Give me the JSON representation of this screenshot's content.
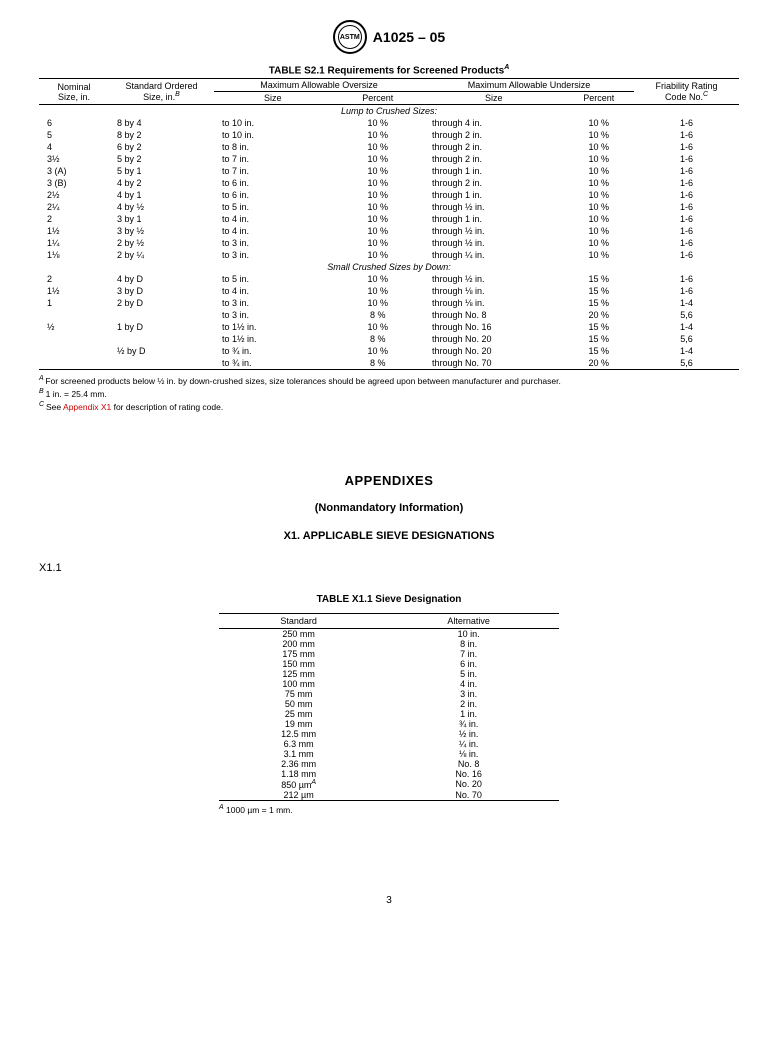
{
  "header": {
    "logo_text": "ASTM",
    "doc_number": "A1025 – 05"
  },
  "table_s21": {
    "title": "TABLE S2.1  Requirements for Screened Products",
    "title_sup": "A",
    "head": {
      "nominal": "Nominal\nSize, in.",
      "standard_ordered": "Standard Ordered\nSize, in.",
      "standard_ordered_sup": "B",
      "max_oversize": "Maximum Allowable Oversize",
      "max_undersize": "Maximum Allowable Undersize",
      "size": "Size",
      "percent": "Percent",
      "friability": "Friability Rating\nCode No.",
      "friability_sup": "C"
    },
    "section1_title": "Lump to Crushed Sizes:",
    "section1_rows": [
      {
        "n": "6",
        "so": "8 by 4",
        "os": "to 10 in.",
        "op": "10 %",
        "us": "through 4 in.",
        "up": "10 %",
        "f": "1-6"
      },
      {
        "n": "5",
        "so": "8 by 2",
        "os": "to 10 in.",
        "op": "10 %",
        "us": "through 2 in.",
        "up": "10 %",
        "f": "1-6"
      },
      {
        "n": "4",
        "so": "6 by 2",
        "os": "to 8 in.",
        "op": "10 %",
        "us": "through 2 in.",
        "up": "10 %",
        "f": "1-6"
      },
      {
        "n": "3½",
        "so": "5 by 2",
        "os": "to 7 in.",
        "op": "10 %",
        "us": "through 2 in.",
        "up": "10 %",
        "f": "1-6"
      },
      {
        "n": "3 (A)",
        "so": "5 by 1",
        "os": "to 7 in.",
        "op": "10 %",
        "us": "through 1 in.",
        "up": "10 %",
        "f": "1-6"
      },
      {
        "n": "3 (B)",
        "so": "4 by 2",
        "os": "to 6 in.",
        "op": "10 %",
        "us": "through 2 in.",
        "up": "10 %",
        "f": "1-6"
      },
      {
        "n": "2½",
        "so": "4 by 1",
        "os": "to 6 in.",
        "op": "10 %",
        "us": "through 1 in.",
        "up": "10 %",
        "f": "1-6"
      },
      {
        "n": "2¼",
        "so": "4 by ½",
        "os": "to 5 in.",
        "op": "10 %",
        "us": "through ½ in.",
        "up": "10 %",
        "f": "1-6"
      },
      {
        "n": "2",
        "so": "3 by 1",
        "os": "to 4 in.",
        "op": "10 %",
        "us": "through 1 in.",
        "up": "10 %",
        "f": "1-6"
      },
      {
        "n": "1½",
        "so": "3 by ½",
        "os": "to 4 in.",
        "op": "10 %",
        "us": "through ½ in.",
        "up": "10 %",
        "f": "1-6"
      },
      {
        "n": "1¼",
        "so": "2 by ½",
        "os": "to 3 in.",
        "op": "10 %",
        "us": "through ½ in.",
        "up": "10 %",
        "f": "1-6"
      },
      {
        "n": "1⅛",
        "so": "2 by ¼",
        "os": "to 3 in.",
        "op": "10 %",
        "us": "through ¼ in.",
        "up": "10 %",
        "f": "1-6"
      }
    ],
    "section2_title": "Small Crushed Sizes by Down:",
    "section2_rows": [
      {
        "n": "2",
        "so": "4 by D",
        "os": "to 5 in.",
        "op": "10 %",
        "us": "through ½ in.",
        "up": "15 %",
        "f": "1-6"
      },
      {
        "n": "1½",
        "so": "3 by D",
        "os": "to 4 in.",
        "op": "10 %",
        "us": "through ⅛ in.",
        "up": "15 %",
        "f": "1-6"
      },
      {
        "n": "1",
        "so": "2 by D",
        "os": "to 3 in.",
        "op": "10 %",
        "us": "through ⅛ in.",
        "up": "15 %",
        "f": "1-4"
      },
      {
        "n": "",
        "so": "",
        "os": "to 3 in.",
        "op": "8 %",
        "us": "through No. 8",
        "up": "20 %",
        "f": "5,6"
      },
      {
        "n": "½",
        "so": "1 by D",
        "os": "to 1½ in.",
        "op": "10 %",
        "us": "through No. 16",
        "up": "15 %",
        "f": "1-4"
      },
      {
        "n": "",
        "so": "",
        "os": "to 1½ in.",
        "op": "8 %",
        "us": "through No. 20",
        "up": "15 %",
        "f": "5,6"
      },
      {
        "n": "",
        "so": "½ by D",
        "os": "to ¾ in.",
        "op": "10 %",
        "us": "through No. 20",
        "up": "15 %",
        "f": "1-4"
      },
      {
        "n": "",
        "so": "",
        "os": "to ¾ in.",
        "op": "8 %",
        "us": "through No. 70",
        "up": "20 %",
        "f": "5,6"
      }
    ],
    "notes": {
      "a": "For screened products below ½ in. by down-crushed sizes, size tolerances should be agreed upon between manufacturer and purchaser.",
      "b": "1 in. = 25.4 mm.",
      "c_pre": "See ",
      "c_link": "Appendix X1",
      "c_post": " for description of rating code."
    }
  },
  "appendix": {
    "title": "APPENDIXES",
    "subtitle": "(Nonmandatory Information)",
    "x1": "X1.  APPLICABLE SIEVE DESIGNATIONS",
    "x11": "X1.1"
  },
  "table_x11": {
    "title": "TABLE X1.1  Sieve Designation",
    "head": {
      "standard": "Standard",
      "alternative": "Alternative"
    },
    "rows": [
      {
        "s": "250 mm",
        "a": "10 in."
      },
      {
        "s": "200 mm",
        "a": "8 in."
      },
      {
        "s": "175 mm",
        "a": "7 in."
      },
      {
        "s": "150 mm",
        "a": "6 in."
      },
      {
        "s": "125 mm",
        "a": "5 in."
      },
      {
        "s": "100 mm",
        "a": "4 in."
      },
      {
        "s": "75 mm",
        "a": "3 in."
      },
      {
        "s": "50 mm",
        "a": "2 in."
      },
      {
        "s": "25 mm",
        "a": "1 in."
      },
      {
        "s": "19 mm",
        "a": "¾ in."
      },
      {
        "s": "12.5 mm",
        "a": "½ in."
      },
      {
        "s": "6.3 mm",
        "a": "¼ in."
      },
      {
        "s": "3.1 mm",
        "a": "⅛ in."
      },
      {
        "s": "2.36 mm",
        "a": "No. 8"
      },
      {
        "s": "1.18 mm",
        "a": "No. 16"
      },
      {
        "s": "850 µm",
        "a_sup": "A",
        "a": "No. 20"
      },
      {
        "s": "212 µm",
        "a": "No. 70"
      }
    ],
    "note": "1000 µm = 1 mm.",
    "note_sup": "A"
  },
  "page_number": "3"
}
